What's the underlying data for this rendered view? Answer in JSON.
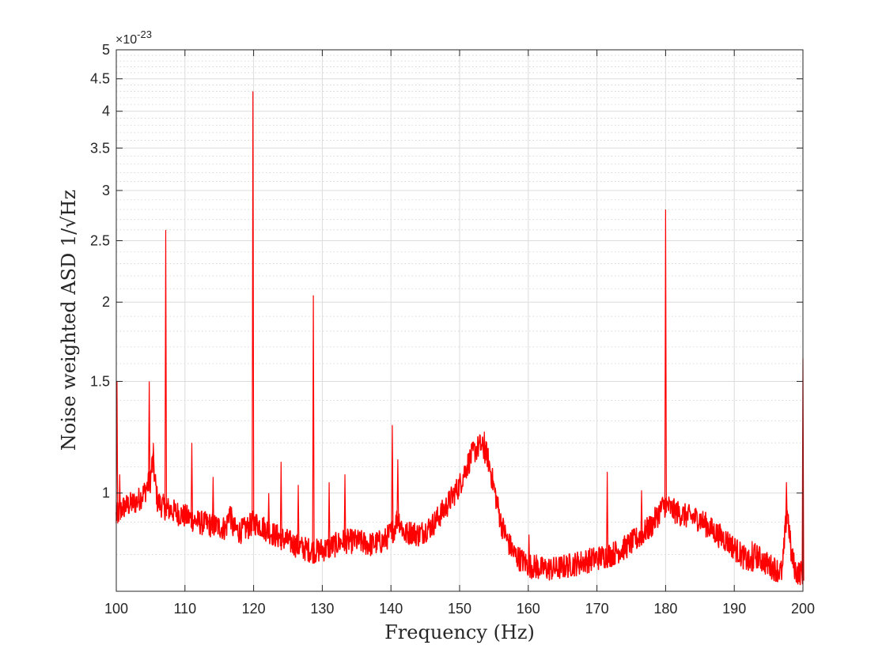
{
  "chart_data": {
    "type": "line",
    "xlabel": "Frequency (Hz)",
    "ylabel": "Noise weighted ASD 1/√Hz",
    "exponent_label": "×10",
    "exponent_value": "-23",
    "xlim": [
      100,
      200
    ],
    "ylim": [
      0.7,
      5
    ],
    "yscale": "log",
    "grid": true,
    "minor_grid": true,
    "x_ticks": [
      100,
      110,
      120,
      130,
      140,
      150,
      160,
      170,
      180,
      190,
      200
    ],
    "x_tick_labels": [
      "100",
      "110",
      "120",
      "130",
      "140",
      "150",
      "160",
      "170",
      "180",
      "190",
      "200"
    ],
    "y_ticks": [
      1,
      1.5,
      2,
      2.5,
      3,
      3.5,
      4,
      4.5,
      5
    ],
    "y_tick_labels": [
      "1",
      "1.5",
      "2",
      "2.5",
      "3",
      "3.5",
      "4",
      "4.5",
      "5"
    ],
    "series": [
      {
        "color": "#ff0000",
        "baseline": [
          [
            100,
            0.92
          ],
          [
            101,
            0.95
          ],
          [
            102,
            0.96
          ],
          [
            103,
            0.97
          ],
          [
            104,
            1.0
          ],
          [
            105,
            1.05
          ],
          [
            105.3,
            1.14
          ],
          [
            105.5,
            1.08
          ],
          [
            106,
            0.97
          ],
          [
            107,
            0.95
          ],
          [
            108,
            0.94
          ],
          [
            110,
            0.92
          ],
          [
            112,
            0.9
          ],
          [
            114,
            0.89
          ],
          [
            116,
            0.88
          ],
          [
            116.5,
            0.94
          ],
          [
            117,
            0.88
          ],
          [
            118,
            0.87
          ],
          [
            119,
            0.88
          ],
          [
            120,
            0.9
          ],
          [
            121,
            0.89
          ],
          [
            123,
            0.86
          ],
          [
            125,
            0.84
          ],
          [
            127,
            0.82
          ],
          [
            129,
            0.81
          ],
          [
            131,
            0.82
          ],
          [
            133,
            0.84
          ],
          [
            135,
            0.84
          ],
          [
            137,
            0.83
          ],
          [
            139,
            0.84
          ],
          [
            140.5,
            0.88
          ],
          [
            141,
            0.92
          ],
          [
            142,
            0.86
          ],
          [
            143,
            0.87
          ],
          [
            144,
            0.86
          ],
          [
            146,
            0.89
          ],
          [
            148,
            0.95
          ],
          [
            150,
            1.03
          ],
          [
            151,
            1.1
          ],
          [
            152,
            1.16
          ],
          [
            153,
            1.19
          ],
          [
            154,
            1.15
          ],
          [
            155,
            1.02
          ],
          [
            156,
            0.9
          ],
          [
            157,
            0.84
          ],
          [
            158,
            0.8
          ],
          [
            160,
            0.77
          ],
          [
            162,
            0.76
          ],
          [
            164,
            0.76
          ],
          [
            166,
            0.77
          ],
          [
            168,
            0.78
          ],
          [
            170,
            0.79
          ],
          [
            172,
            0.8
          ],
          [
            174,
            0.82
          ],
          [
            176,
            0.85
          ],
          [
            178,
            0.89
          ],
          [
            179.5,
            0.95
          ],
          [
            180,
            0.96
          ],
          [
            181,
            0.94
          ],
          [
            183,
            0.92
          ],
          [
            185,
            0.91
          ],
          [
            187,
            0.87
          ],
          [
            189,
            0.84
          ],
          [
            191,
            0.8
          ],
          [
            192.5,
            0.77
          ],
          [
            193,
            0.8
          ],
          [
            195,
            0.77
          ],
          [
            197,
            0.75
          ],
          [
            197.7,
            0.95
          ],
          [
            198.3,
            0.8
          ],
          [
            199,
            0.75
          ],
          [
            200,
            0.75
          ]
        ],
        "spikes": [
          [
            100.1,
            1.5
          ],
          [
            100.5,
            1.07
          ],
          [
            104.8,
            1.5
          ],
          [
            105.4,
            1.2
          ],
          [
            107.2,
            2.6
          ],
          [
            111,
            1.2
          ],
          [
            114.1,
            1.06
          ],
          [
            119.9,
            4.3
          ],
          [
            122.2,
            1.0
          ],
          [
            124,
            1.12
          ],
          [
            126.5,
            1.03
          ],
          [
            128.7,
            2.05
          ],
          [
            131,
            1.04
          ],
          [
            133.3,
            1.07
          ],
          [
            140.2,
            1.28
          ],
          [
            141,
            1.13
          ],
          [
            153.6,
            1.25
          ],
          [
            160.1,
            0.86
          ],
          [
            161.2,
            0.8
          ],
          [
            171.5,
            1.08
          ],
          [
            176.5,
            1.01
          ],
          [
            180.0,
            2.8
          ],
          [
            192.6,
            0.84
          ],
          [
            197.6,
            1.04
          ],
          [
            200,
            1.63
          ]
        ]
      }
    ]
  }
}
